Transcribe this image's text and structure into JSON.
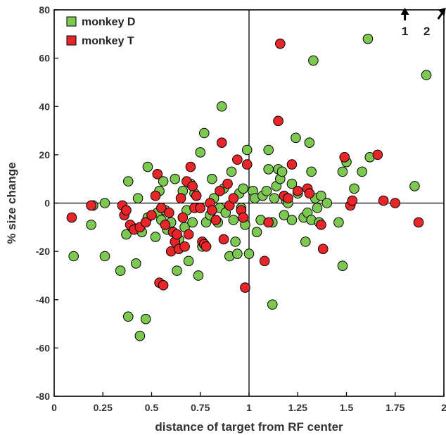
{
  "chart_data": {
    "type": "scatter",
    "xlabel": "distance of target from RF center",
    "ylabel": "% size change",
    "xlim": [
      0,
      2
    ],
    "ylim": [
      -80,
      80
    ],
    "x_ticks": [
      0,
      0.25,
      0.5,
      0.75,
      1,
      1.25,
      1.5,
      1.75,
      2
    ],
    "x_tick_labels": [
      "0",
      "0.25",
      "0.5",
      "0.75",
      "1",
      "1.25",
      "1.5",
      "1.75",
      "2"
    ],
    "y_ticks": [
      -80,
      -60,
      -40,
      -20,
      0,
      20,
      40,
      60,
      80
    ],
    "y_tick_labels": [
      "-80",
      "-60",
      "-40",
      "-20",
      "0",
      "20",
      "40",
      "60",
      "80"
    ],
    "reference_lines": {
      "x": 1,
      "y": 0
    },
    "legend_position": "top-left",
    "series": [
      {
        "name": "monkey D",
        "color": "#7dc850",
        "points": [
          [
            0.1,
            -22
          ],
          [
            0.19,
            -9
          ],
          [
            0.2,
            -1
          ],
          [
            0.26,
            0
          ],
          [
            0.26,
            -22
          ],
          [
            0.34,
            -28
          ],
          [
            0.37,
            -13
          ],
          [
            0.38,
            -47
          ],
          [
            0.38,
            9
          ],
          [
            0.4,
            -10
          ],
          [
            0.42,
            -25
          ],
          [
            0.43,
            2
          ],
          [
            0.44,
            -55
          ],
          [
            0.45,
            -12
          ],
          [
            0.47,
            -48
          ],
          [
            0.48,
            -6
          ],
          [
            0.48,
            15
          ],
          [
            0.52,
            -14
          ],
          [
            0.53,
            -4
          ],
          [
            0.54,
            5
          ],
          [
            0.55,
            -7
          ],
          [
            0.56,
            9
          ],
          [
            0.57,
            -3
          ],
          [
            0.58,
            -11
          ],
          [
            0.6,
            -8
          ],
          [
            0.62,
            10
          ],
          [
            0.63,
            -28
          ],
          [
            0.64,
            -15
          ],
          [
            0.66,
            5
          ],
          [
            0.67,
            -10
          ],
          [
            0.68,
            -3
          ],
          [
            0.69,
            -24
          ],
          [
            0.7,
            8
          ],
          [
            0.71,
            -8
          ],
          [
            0.72,
            4
          ],
          [
            0.74,
            -30
          ],
          [
            0.75,
            21
          ],
          [
            0.75,
            -2
          ],
          [
            0.76,
            -18
          ],
          [
            0.77,
            29
          ],
          [
            0.78,
            -8
          ],
          [
            0.8,
            -5
          ],
          [
            0.81,
            10
          ],
          [
            0.82,
            2
          ],
          [
            0.84,
            -8
          ],
          [
            0.85,
            -2
          ],
          [
            0.86,
            40
          ],
          [
            0.87,
            6
          ],
          [
            0.88,
            -4
          ],
          [
            0.9,
            -22
          ],
          [
            0.91,
            13
          ],
          [
            0.92,
            -7
          ],
          [
            0.93,
            -16
          ],
          [
            0.94,
            -21
          ],
          [
            0.95,
            4
          ],
          [
            0.96,
            -2
          ],
          [
            0.97,
            6
          ],
          [
            0.98,
            -9
          ],
          [
            0.99,
            22
          ],
          [
            1.0,
            -21
          ],
          [
            1.02,
            5
          ],
          [
            1.03,
            2
          ],
          [
            1.04,
            -12
          ],
          [
            1.06,
            -7
          ],
          [
            1.07,
            3
          ],
          [
            1.09,
            5
          ],
          [
            1.1,
            22
          ],
          [
            1.1,
            14
          ],
          [
            1.12,
            -42
          ],
          [
            1.12,
            -8
          ],
          [
            1.13,
            2
          ],
          [
            1.14,
            7
          ],
          [
            1.15,
            14
          ],
          [
            1.16,
            10
          ],
          [
            1.17,
            13
          ],
          [
            1.18,
            -5
          ],
          [
            1.19,
            1
          ],
          [
            1.2,
            0
          ],
          [
            1.22,
            8
          ],
          [
            1.22,
            -7
          ],
          [
            1.24,
            27
          ],
          [
            1.25,
            4
          ],
          [
            1.28,
            -6
          ],
          [
            1.29,
            -16
          ],
          [
            1.3,
            -4
          ],
          [
            1.31,
            25
          ],
          [
            1.32,
            13
          ],
          [
            1.32,
            -7
          ],
          [
            1.33,
            59
          ],
          [
            1.34,
            2
          ],
          [
            1.35,
            -2
          ],
          [
            1.36,
            -8
          ],
          [
            1.37,
            3
          ],
          [
            1.4,
            0
          ],
          [
            1.46,
            -8
          ],
          [
            1.48,
            13
          ],
          [
            1.48,
            -26
          ],
          [
            1.5,
            17
          ],
          [
            1.54,
            6
          ],
          [
            1.58,
            13
          ],
          [
            1.61,
            68
          ],
          [
            1.62,
            19
          ],
          [
            1.85,
            7
          ],
          [
            1.91,
            53
          ]
        ]
      },
      {
        "name": "monkey T",
        "color": "#e8262a",
        "points": [
          [
            0.09,
            -6
          ],
          [
            0.19,
            -1
          ],
          [
            0.35,
            -1
          ],
          [
            0.36,
            -5
          ],
          [
            0.37,
            -3
          ],
          [
            0.39,
            -9
          ],
          [
            0.41,
            -11
          ],
          [
            0.44,
            -10
          ],
          [
            0.47,
            -8
          ],
          [
            0.5,
            -5
          ],
          [
            0.52,
            3
          ],
          [
            0.53,
            12
          ],
          [
            0.54,
            -33
          ],
          [
            0.55,
            -2
          ],
          [
            0.56,
            -34
          ],
          [
            0.57,
            -9
          ],
          [
            0.59,
            -4
          ],
          [
            0.6,
            -20
          ],
          [
            0.61,
            -12
          ],
          [
            0.62,
            -16
          ],
          [
            0.63,
            -13
          ],
          [
            0.64,
            -19
          ],
          [
            0.65,
            2
          ],
          [
            0.66,
            -6
          ],
          [
            0.67,
            -18
          ],
          [
            0.68,
            9
          ],
          [
            0.69,
            -13
          ],
          [
            0.7,
            15
          ],
          [
            0.71,
            7
          ],
          [
            0.72,
            -2
          ],
          [
            0.73,
            3
          ],
          [
            0.75,
            -2
          ],
          [
            0.76,
            -16
          ],
          [
            0.77,
            -17
          ],
          [
            0.78,
            -18
          ],
          [
            0.8,
            0
          ],
          [
            0.81,
            -3
          ],
          [
            0.83,
            -7
          ],
          [
            0.85,
            5
          ],
          [
            0.86,
            25
          ],
          [
            0.87,
            -15
          ],
          [
            0.89,
            8
          ],
          [
            0.9,
            -1
          ],
          [
            0.92,
            2
          ],
          [
            0.94,
            18
          ],
          [
            0.96,
            -3
          ],
          [
            0.97,
            -6
          ],
          [
            0.98,
            -35
          ],
          [
            0.99,
            16
          ],
          [
            1.08,
            -24
          ],
          [
            1.1,
            -8
          ],
          [
            1.15,
            34
          ],
          [
            1.16,
            66
          ],
          [
            1.18,
            3
          ],
          [
            1.2,
            2
          ],
          [
            1.22,
            16
          ],
          [
            1.25,
            5
          ],
          [
            1.3,
            6
          ],
          [
            1.31,
            4
          ],
          [
            1.37,
            -9
          ],
          [
            1.38,
            -19
          ],
          [
            1.49,
            19
          ],
          [
            1.52,
            -1
          ],
          [
            1.53,
            1
          ],
          [
            1.66,
            20
          ],
          [
            1.69,
            1
          ],
          [
            1.75,
            0
          ],
          [
            1.87,
            -8
          ]
        ]
      }
    ],
    "offscale_markers": [
      {
        "label": "1",
        "x": 1.8,
        "direction": "up"
      },
      {
        "label": "2",
        "x": 1.97,
        "direction": "up-right"
      }
    ]
  }
}
